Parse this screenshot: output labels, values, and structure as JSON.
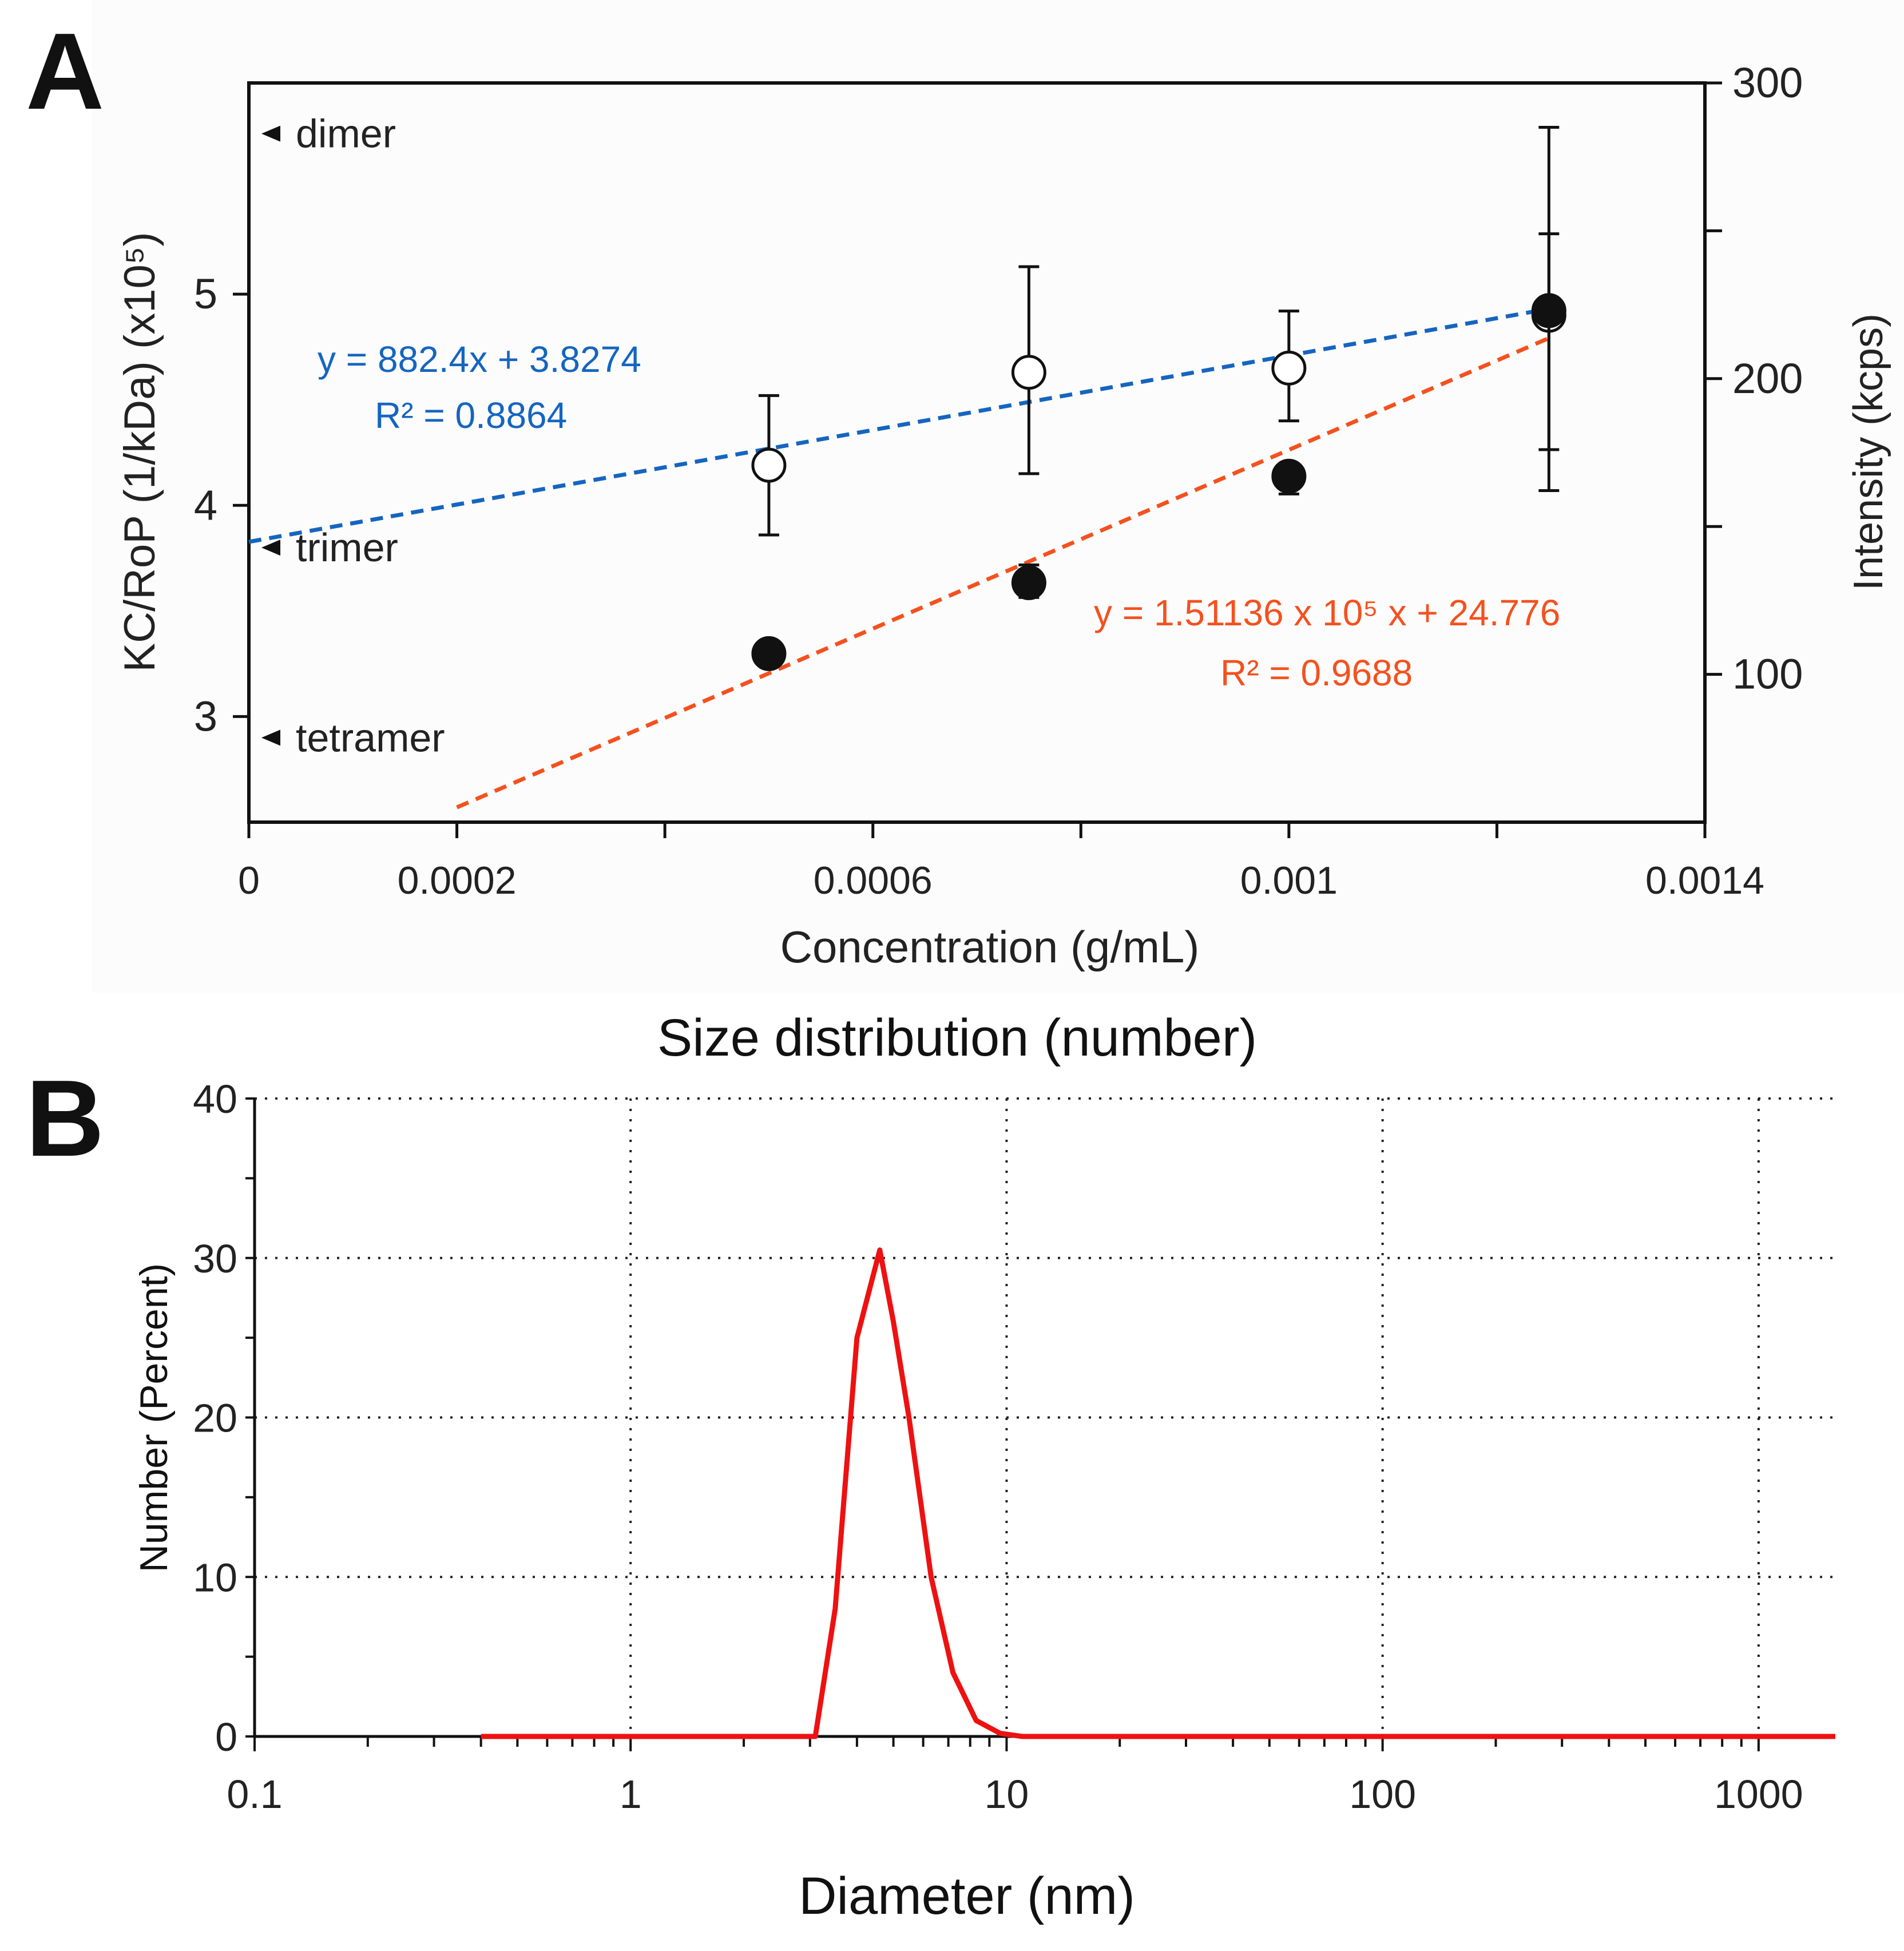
{
  "panel_a_letter": "A",
  "panel_b_letter": "B",
  "colors": {
    "axis": "#111111",
    "blue_series": "#1565c0",
    "orange_series": "#f4511e",
    "curve": "#ee1111",
    "grid": "#222222"
  },
  "chart_data": [
    {
      "type": "scatter",
      "xlabel": "Concentration (g/mL)",
      "ylabel_left": "KC/RoP (1/kDa) (x10⁵)",
      "ylabel_right": "Intensity (kcps)",
      "xlim": [
        0,
        0.0014
      ],
      "ylim_left": [
        2.5,
        6.0
      ],
      "ylim_right": [
        50,
        300
      ],
      "x_ticks": [
        0,
        0.0002,
        0.0004,
        0.0006,
        0.0008,
        0.001,
        0.0012,
        0.0014
      ],
      "x_tick_labels": [
        "0",
        "0.0002",
        "",
        "0.0006",
        "",
        "0.001",
        "",
        "0.0014"
      ],
      "y_left_ticks": [
        3,
        4,
        5
      ],
      "y_left_tick_labels": [
        "3",
        "4",
        "5"
      ],
      "y_right_ticks": [
        100,
        150,
        200,
        250,
        300
      ],
      "y_right_tick_labels": [
        "100",
        "",
        "200",
        "",
        "300"
      ],
      "reference_labels": [
        {
          "label": "dimer",
          "y": 5.76
        },
        {
          "label": "trimer",
          "y": 3.8
        },
        {
          "label": "tetramer",
          "y": 2.9
        }
      ],
      "series": [
        {
          "marker": "open-circle",
          "axis": "left",
          "color": "#1565c0",
          "x": [
            0.0005,
            0.00075,
            0.001,
            0.00125
          ],
          "y": [
            4.19,
            4.63,
            4.65,
            4.9
          ],
          "yerr_low": [
            3.86,
            4.15,
            4.4,
            4.07
          ],
          "yerr_high": [
            4.52,
            5.13,
            4.92,
            5.79
          ],
          "fit": {
            "slope": 882.4,
            "intercept": 3.8274,
            "x_range": [
              0,
              0.00125
            ]
          },
          "equation": "y = 882.4x + 3.8274",
          "r2": "R² = 0.8864"
        },
        {
          "marker": "filled-circle",
          "axis": "right",
          "color": "#f4511e",
          "x": [
            0.0005,
            0.00075,
            0.001,
            0.00125
          ],
          "y": [
            107,
            131,
            167,
            223
          ],
          "yerr_low": [
            103,
            126,
            161,
            176
          ],
          "yerr_high": [
            111,
            137,
            171,
            249
          ],
          "fit": {
            "slope": 151136,
            "intercept": 24.776,
            "x_range": [
              0.0002,
              0.00125
            ]
          },
          "equation": "y = 1.51136 x 10⁵ x + 24.776",
          "r2": "R² = 0.9688"
        }
      ]
    },
    {
      "type": "line",
      "title": "Size distribution (number)",
      "xlabel": "Diameter (nm)",
      "ylabel": "Number (Percent)",
      "xscale": "log",
      "xlim": [
        0.1,
        1600
      ],
      "ylim": [
        0,
        40
      ],
      "x_ticks": [
        0.1,
        1,
        10,
        100,
        1000
      ],
      "x_tick_labels": [
        "0.1",
        "1",
        "10",
        "100",
        "1000"
      ],
      "y_ticks": [
        0,
        10,
        20,
        30,
        40
      ],
      "y_tick_labels": [
        "0",
        "10",
        "20",
        "30",
        "40"
      ],
      "grid": true,
      "series": [
        {
          "color": "#ee1111",
          "x": [
            0.4,
            3.1,
            3.5,
            4.0,
            4.6,
            5.0,
            5.5,
            6.3,
            7.2,
            8.3,
            9.6,
            11,
            13,
            100,
            1000,
            1600
          ],
          "y": [
            0,
            0,
            8,
            25,
            30.5,
            26,
            20,
            10,
            4,
            1,
            0.2,
            0,
            0,
            0,
            0,
            0
          ]
        }
      ]
    }
  ]
}
